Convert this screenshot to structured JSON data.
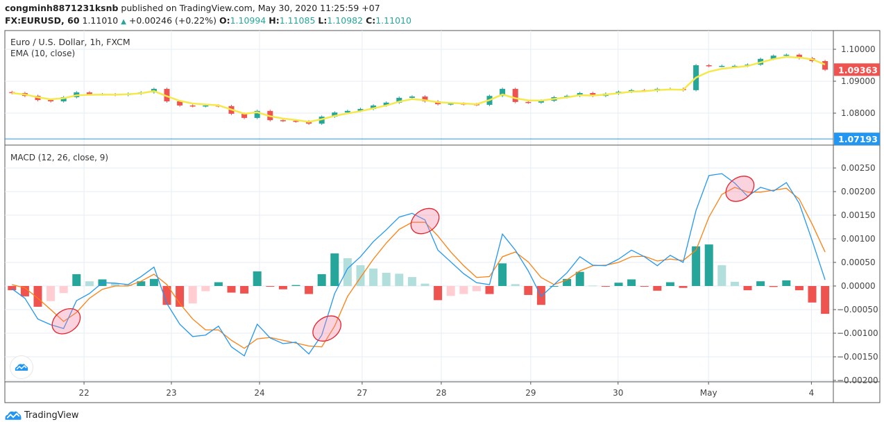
{
  "header": {
    "author": "congminh8871231ksnb",
    "published": " published on TradingView.com, May 30, 2020 11:25:59 +07",
    "symbol": "FX:EURUSD, 60",
    "last": "1.11010",
    "change": "+0.00246 (+0.22%)",
    "o_label": "O:",
    "o": "1.10994",
    "h_label": "H:",
    "h": "1.11085",
    "l_label": "L:",
    "l": "1.10982",
    "c_label": "C:",
    "c": "1.11010"
  },
  "price_pane": {
    "title": "Euro / U.S. Dollar, 1h, FXCM",
    "indicator": "EMA (10, close)",
    "last_price_badge": "1.09363",
    "line_badge": "1.07193"
  },
  "macd_pane": {
    "title": "MACD (12, 26, close, 9)"
  },
  "footer": {
    "brand": "TradingView"
  },
  "colors": {
    "up": "#26a69a",
    "down": "#ef5350",
    "ema": "#f5e94a",
    "macd": "#2196f3",
    "signal": "#ff7f0e",
    "hist_up_strong": "#26a69a",
    "hist_up_weak": "#b2dfdb",
    "hist_down_strong": "#ef5350",
    "hist_down_weak": "#ffcdd2",
    "badge_blue": "#2196f3",
    "badge_red": "#ef5350"
  },
  "chart_data": [
    {
      "type": "candlestick",
      "title": "Euro / U.S. Dollar, 1h, FXCM",
      "ylim": [
        1.0705,
        1.1058
      ],
      "y_ticks": [
        "1.10000",
        "1.09000",
        "1.08000"
      ],
      "y_tick_values": [
        1.1,
        1.09,
        1.08
      ],
      "horizontal_line": 1.07193,
      "last_price": 1.09363,
      "first_open": 1.0866,
      "closes": [
        1.0863,
        1.0854,
        1.0841,
        1.0837,
        1.085,
        1.0865,
        1.0859,
        1.0859,
        1.0857,
        1.0861,
        1.0865,
        1.0876,
        1.0837,
        1.0824,
        1.0822,
        1.0824,
        1.0822,
        1.0798,
        1.0785,
        1.0807,
        1.0778,
        1.0776,
        1.0774,
        1.0767,
        1.0789,
        1.0802,
        1.0807,
        1.0813,
        1.0824,
        1.0833,
        1.0848,
        1.0852,
        1.0837,
        1.0828,
        1.083,
        1.0828,
        1.0826,
        1.0854,
        1.0876,
        1.0835,
        1.0833,
        1.0839,
        1.085,
        1.0854,
        1.0863,
        1.0854,
        1.0861,
        1.0867,
        1.0872,
        1.087,
        1.0876,
        1.0876,
        1.0872,
        1.095,
        1.0948,
        1.0948,
        1.0948,
        1.0952,
        1.097,
        1.098,
        1.0983,
        1.0972,
        1.0963,
        1.0936
      ],
      "ema_label": "EMA (10, close)"
    },
    {
      "type": "line",
      "title": "MACD (12, 26, close, 9)",
      "ylim": [
        -0.00205,
        0.0029
      ],
      "y_ticks": [
        "0.00250",
        "0.00200",
        "0.00150",
        "0.00100",
        "0.00050",
        "0.00000",
        "−0.00050",
        "−0.00100",
        "−0.00150",
        "−0.00200"
      ],
      "y_tick_values": [
        0.0025,
        0.002,
        0.0015,
        0.001,
        0.0005,
        0,
        -0.0005,
        -0.001,
        -0.0015,
        -0.002
      ],
      "series": [
        {
          "name": "MACD",
          "values": [
            -6e-05,
            -0.00026,
            -0.0007,
            -0.00082,
            -0.0009,
            -0.00031,
            -0.00016,
            7e-05,
            6e-05,
            3e-05,
            0.0002,
            0.0004,
            -0.00037,
            -0.00081,
            -0.00107,
            -0.00104,
            -0.00085,
            -0.00129,
            -0.00148,
            -0.00081,
            -0.0011,
            -0.00122,
            -0.00119,
            -0.00144,
            -0.00104,
            -0.00016,
            0.00037,
            0.00062,
            0.00094,
            0.00119,
            0.00146,
            0.00154,
            0.0014,
            0.00076,
            0.00051,
            0.00026,
            7e-05,
            3e-05,
            0.0011,
            0.00076,
            0.00032,
            -0.00022,
            3e-05,
            0.00028,
            0.00062,
            0.00044,
            0.00043,
            0.00057,
            0.00076,
            0.00062,
            0.00043,
            0.00065,
            0.0005,
            0.0016,
            0.00234,
            0.00238,
            0.00218,
            0.0019,
            0.00209,
            0.00201,
            0.00219,
            0.00175,
            0.00096,
            0.00013
          ]
        },
        {
          "name": "Signal",
          "values": [
            3e-05,
            -4e-05,
            -0.00026,
            -0.0005,
            -0.00075,
            -0.00056,
            -0.00026,
            -7e-05,
            0,
            0,
            0.0001,
            0.00025,
            3e-05,
            -0.00037,
            -0.0007,
            -0.00093,
            -0.00093,
            -0.00115,
            -0.00132,
            -0.00112,
            -0.00109,
            -0.00115,
            -0.00121,
            -0.00127,
            -0.00129,
            -0.00085,
            -0.00022,
            0.00018,
            0.00057,
            0.00091,
            0.0012,
            0.00135,
            0.00135,
            0.00106,
            0.00072,
            0.00043,
            0.00018,
            0.0002,
            0.00062,
            0.00072,
            0.00051,
            0.00018,
            3e-05,
            0.00013,
            0.00032,
            0.00043,
            0.00044,
            0.0005,
            0.00062,
            0.00063,
            0.00053,
            0.00057,
            0.00054,
            0.00076,
            0.00146,
            0.00194,
            0.00209,
            0.00199,
            0.00199,
            0.00203,
            0.00207,
            0.00184,
            0.00131,
            0.00072
          ]
        }
      ],
      "histogram": "MACD minus Signal"
    }
  ],
  "x_axis": {
    "ticks": [
      {
        "label": "22",
        "at": 5.58
      },
      {
        "label": "23",
        "at": 12.35
      },
      {
        "label": "24",
        "at": 19.18
      },
      {
        "label": "27",
        "at": 27.13
      },
      {
        "label": "28",
        "at": 33.26
      },
      {
        "label": "29",
        "at": 40.19
      },
      {
        "label": "30",
        "at": 46.96
      },
      {
        "label": "May",
        "at": 53.97
      },
      {
        "label": "4",
        "at": 61.94
      }
    ]
  },
  "annotations": {
    "highlight_ellipses_at_index": [
      4.2,
      24.4,
      32.0,
      56.4
    ]
  }
}
